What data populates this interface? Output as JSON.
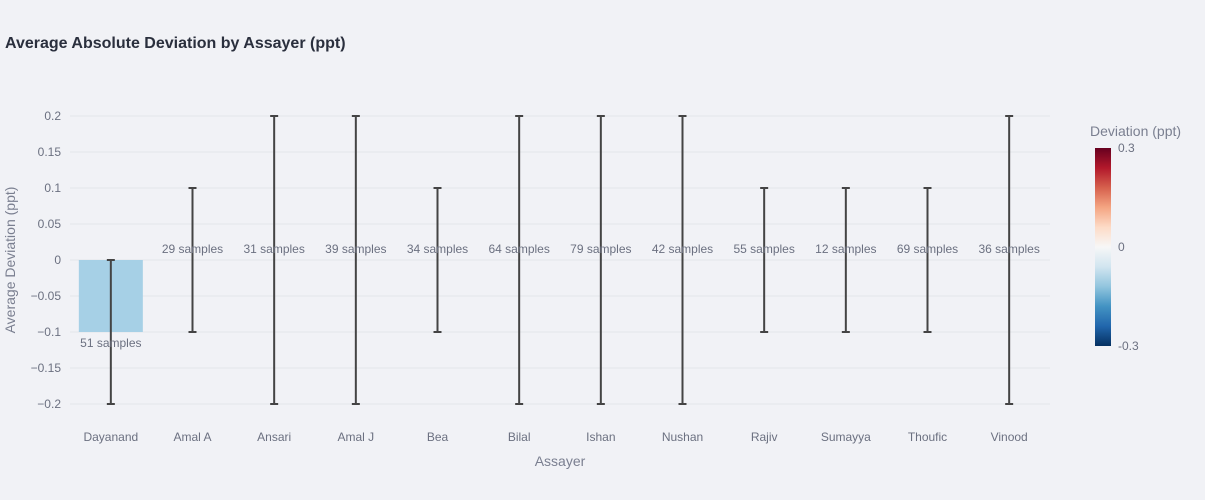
{
  "chart_data": {
    "type": "bar",
    "title": "Average Absolute Deviation by Assayer (ppt)",
    "xlabel": "Assayer",
    "ylabel": "Average Deviation (ppt)",
    "ylim": [
      -0.23,
      0.23
    ],
    "yticks": [
      0.2,
      0.15,
      0.1,
      0.05,
      0,
      -0.05,
      -0.1,
      -0.15,
      -0.2
    ],
    "ytick_labels": [
      "0.2",
      "0.15",
      "0.1",
      "0.05",
      "0",
      "−0.05",
      "−0.1",
      "−0.15",
      "−0.2"
    ],
    "grid": true,
    "categories": [
      "Dayanand",
      "Amal A",
      "Ansari",
      "Amal J",
      "Bea",
      "Bilal",
      "Ishan",
      "Nushan",
      "Rajiv",
      "Sumayya",
      "Thoufic",
      "Vinood"
    ],
    "values": [
      -0.1,
      0,
      0,
      0,
      0,
      0,
      0,
      0,
      0,
      0,
      0,
      0
    ],
    "error": [
      0.1,
      0.1,
      0.2,
      0.2,
      0.1,
      0.2,
      0.2,
      0.2,
      0.1,
      0.1,
      0.1,
      0.2
    ],
    "labels": [
      "51 samples",
      "29 samples",
      "31 samples",
      "39 samples",
      "34 samples",
      "64 samples",
      "79 samples",
      "42 samples",
      "55 samples",
      "12 samples",
      "69 samples",
      "36 samples"
    ],
    "bar_color": "#a6d0e6",
    "error_color": "#444444",
    "colorbar": {
      "title": "Deviation (ppt)",
      "range": [
        -0.3,
        0.3
      ],
      "tick_labels": [
        "0.3",
        "0",
        "-0.3"
      ],
      "colors": [
        "#67001f",
        "#b2182b",
        "#d6604d",
        "#f4a582",
        "#fddbc7",
        "#f7f7f7",
        "#d1e5f0",
        "#92c5de",
        "#4393c3",
        "#2166ac",
        "#053061"
      ]
    }
  }
}
